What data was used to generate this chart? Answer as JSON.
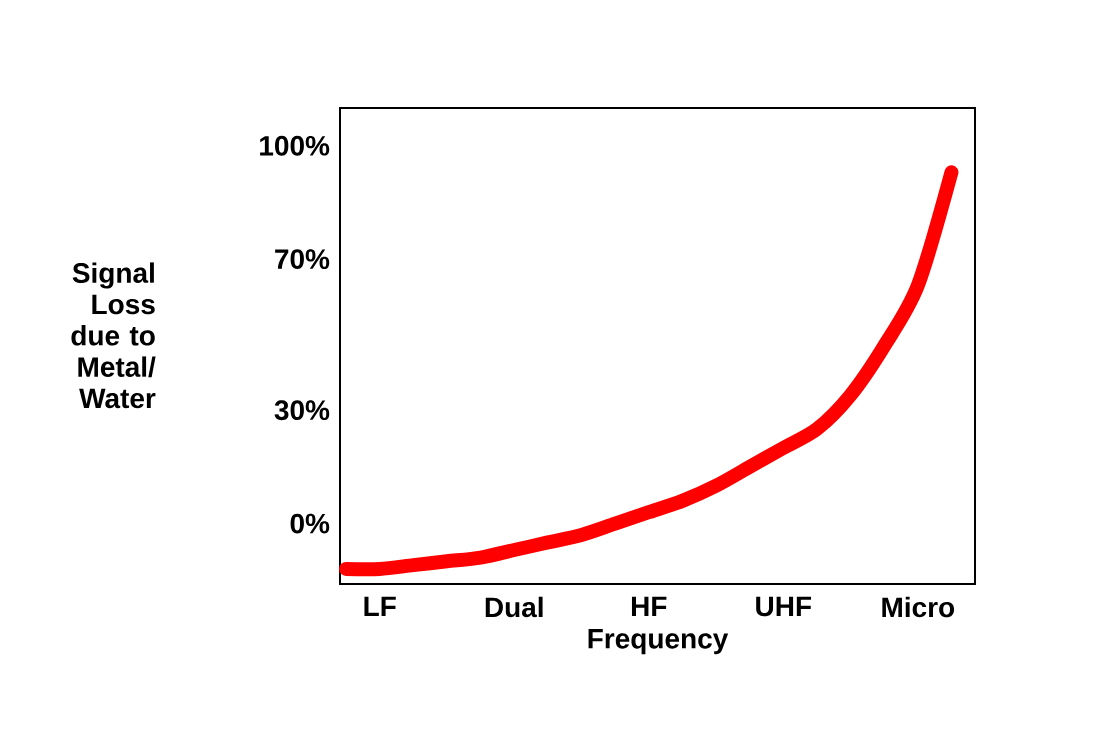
{
  "chart_data": {
    "type": "line",
    "xlabel": "Frequency",
    "ylabel": "Signal Loss due to Metal/ Water",
    "categories": [
      null,
      "LF",
      null,
      null,
      null,
      "Dual",
      null,
      null,
      null,
      "HF",
      null,
      null,
      null,
      "UHF",
      null,
      null,
      null,
      "Micro",
      null
    ],
    "series": [
      {
        "color": "#ff0000",
        "values": [
          -12,
          -12,
          -11,
          -10,
          -9,
          -7,
          -5,
          -3,
          0,
          3,
          6,
          10,
          15,
          20,
          25,
          34,
          47,
          63,
          93
        ]
      }
    ],
    "ylim": [
      -16,
      110
    ],
    "yticks": [
      {
        "value": 0,
        "label": "0%"
      },
      {
        "value": 30,
        "label": "30%"
      },
      {
        "value": 70,
        "label": "70%"
      },
      {
        "value": 100,
        "label": "100%"
      }
    ],
    "marker": "none",
    "line_style": "solid",
    "grid": false
  }
}
